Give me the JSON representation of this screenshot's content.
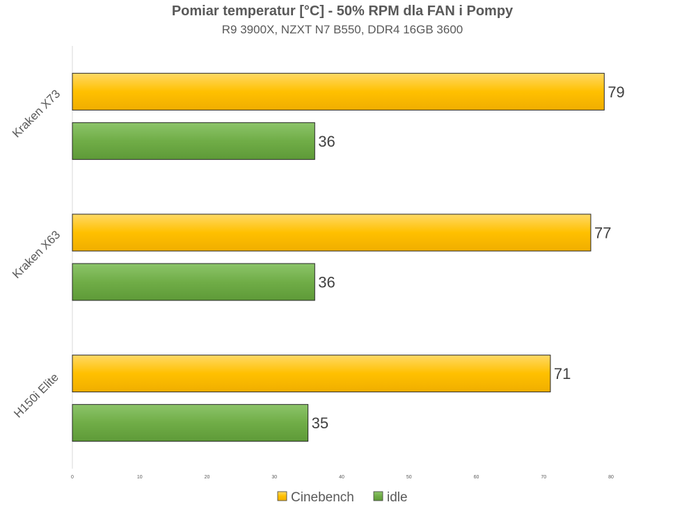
{
  "chart_data": {
    "type": "bar",
    "orientation": "horizontal",
    "title": "Pomiar temperatur [°C] - 50% RPM dla FAN i Pompy",
    "subtitle": "R9 3900X, NZXT N7 B550, DDR4 16GB 3600",
    "categories": [
      "Kraken X73",
      "Kraken X63",
      "H150i Elite"
    ],
    "series": [
      {
        "name": "Cinebench",
        "values": [
          79,
          77,
          71
        ],
        "color": "#FFC000"
      },
      {
        "name": "idle",
        "values": [
          36,
          36,
          35
        ],
        "color": "#70AD47"
      }
    ],
    "xlim": [
      0,
      80
    ],
    "xticks": [
      "0",
      "10",
      "20",
      "30",
      "40",
      "50",
      "60",
      "70",
      "80"
    ],
    "grid": false,
    "legend": "bottom"
  }
}
